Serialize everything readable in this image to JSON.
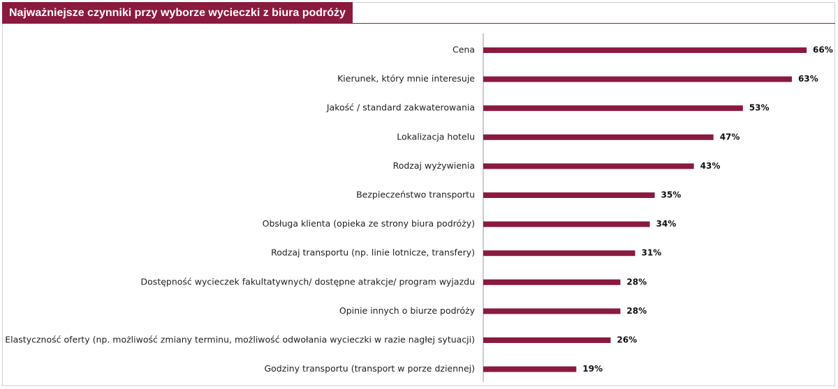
{
  "title": "Najważniejsze czynniki przy wyborze wycieczki z biura podróży",
  "colors": {
    "accent": "#8b1a3f",
    "bar": "#8b1a3f",
    "axis": "#999999"
  },
  "chart_data": {
    "type": "bar",
    "orientation": "horizontal",
    "title": "Najważniejsze czynniki przy wyborze wycieczki z biura podróży",
    "categories": [
      "Cena",
      "Kierunek, który mnie interesuje",
      "Jakość / standard zakwaterowania",
      "Lokalizacja hotelu",
      "Rodzaj wyżywienia",
      "Bezpieczeństwo transportu",
      "Obsługa klienta (opieka ze strony biura podróży)",
      "Rodzaj transportu (np. linie lotnicze, transfery)",
      "Dostępność wycieczek fakultatywnych/ dostępne atrakcje/ program wyjazdu",
      "Opinie innych o biurze podróży",
      "Elastyczność oferty (np. możliwość zmiany terminu, możliwość odwołania wycieczki w razie nagłej sytuacji)",
      "Godziny transportu (transport w porze dziennej)"
    ],
    "values": [
      66,
      63,
      53,
      47,
      43,
      35,
      34,
      31,
      28,
      28,
      26,
      19
    ],
    "value_labels": [
      "66%",
      "63%",
      "53%",
      "47%",
      "43%",
      "35%",
      "34%",
      "31%",
      "28%",
      "28%",
      "26%",
      "19%"
    ],
    "unit": "%",
    "xlim": [
      0,
      66
    ],
    "grid": false,
    "legend": "none"
  }
}
